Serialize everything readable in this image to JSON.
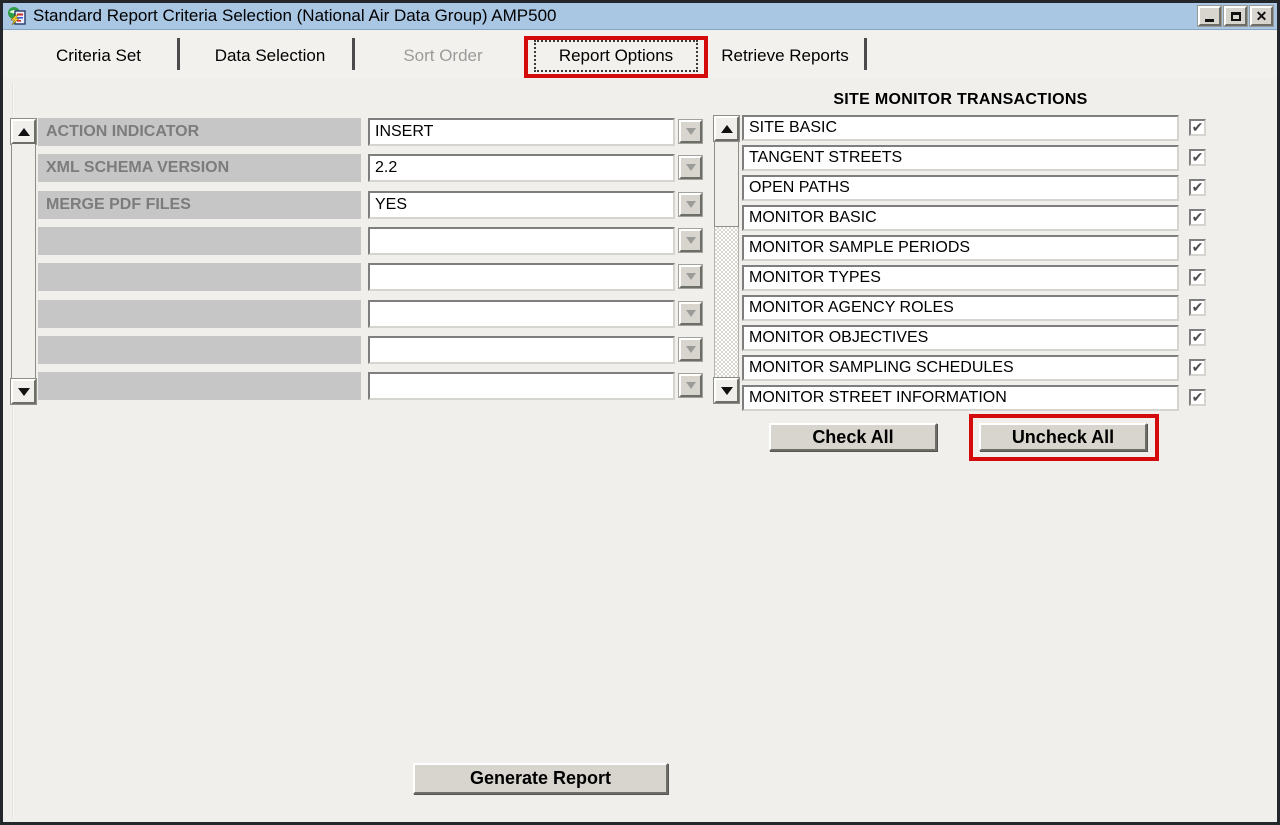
{
  "window": {
    "title": "Standard Report Criteria Selection (National Air Data Group) AMP500"
  },
  "tabs": [
    {
      "label": "Criteria Set",
      "state": "enabled"
    },
    {
      "label": "Data Selection",
      "state": "enabled"
    },
    {
      "label": "Sort Order",
      "state": "disabled"
    },
    {
      "label": "Report Options",
      "state": "selected"
    },
    {
      "label": "Retrieve Reports",
      "state": "enabled"
    }
  ],
  "left_form": {
    "rows": [
      {
        "label": "ACTION INDICATOR",
        "value": "INSERT"
      },
      {
        "label": "XML SCHEMA VERSION",
        "value": "2.2"
      },
      {
        "label": "MERGE PDF FILES",
        "value": "YES"
      },
      {
        "label": "",
        "value": ""
      },
      {
        "label": "",
        "value": ""
      },
      {
        "label": "",
        "value": ""
      },
      {
        "label": "",
        "value": ""
      },
      {
        "label": "",
        "value": ""
      }
    ]
  },
  "right_list": {
    "header": "SITE MONITOR TRANSACTIONS",
    "items": [
      {
        "label": "SITE BASIC",
        "checked": true
      },
      {
        "label": "TANGENT STREETS",
        "checked": true
      },
      {
        "label": "OPEN PATHS",
        "checked": true
      },
      {
        "label": "MONITOR BASIC",
        "checked": true
      },
      {
        "label": "MONITOR SAMPLE PERIODS",
        "checked": true
      },
      {
        "label": "MONITOR TYPES",
        "checked": true
      },
      {
        "label": "MONITOR AGENCY ROLES",
        "checked": true
      },
      {
        "label": "MONITOR OBJECTIVES",
        "checked": true
      },
      {
        "label": "MONITOR SAMPLING SCHEDULES",
        "checked": true
      },
      {
        "label": "MONITOR STREET INFORMATION",
        "checked": true
      }
    ],
    "check_all_label": "Check All",
    "uncheck_all_label": "Uncheck All",
    "checkmark_glyph": "✔"
  },
  "actions": {
    "generate_label": "Generate Report"
  },
  "annotations": {
    "highlight_color": "#d40b0b",
    "highlighted_tab": "Report Options",
    "highlighted_button": "Uncheck All"
  },
  "colors": {
    "titlebar": "#a9c6e3",
    "label_bar": "#c6c6c6",
    "label_text": "#7c7c7c",
    "window_bg": "#f0efec"
  }
}
